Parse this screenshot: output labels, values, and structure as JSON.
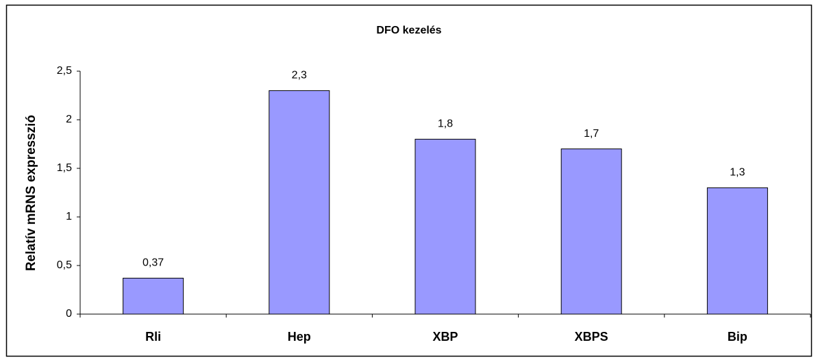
{
  "chart_data": {
    "type": "bar",
    "title": "DFO kezelés",
    "y_label": "Relatív mRNS expresszió",
    "categories": [
      "Rli",
      "Hep",
      "XBP",
      "XBPS",
      "Bip"
    ],
    "values": [
      0.37,
      2.3,
      1.8,
      1.7,
      1.3
    ],
    "value_labels": [
      "0,37",
      "2,3",
      "1,8",
      "1,7",
      "1,3"
    ],
    "color": "#9999ff",
    "ylim": [
      0,
      2.5
    ],
    "yticks": [
      0,
      {
        "value": 0.5,
        "label": "0,5"
      },
      1,
      {
        "value": 1.5,
        "label": "1,5"
      },
      2,
      {
        "value": 2.5,
        "label": "2,5"
      }
    ],
    "grid": false
  }
}
